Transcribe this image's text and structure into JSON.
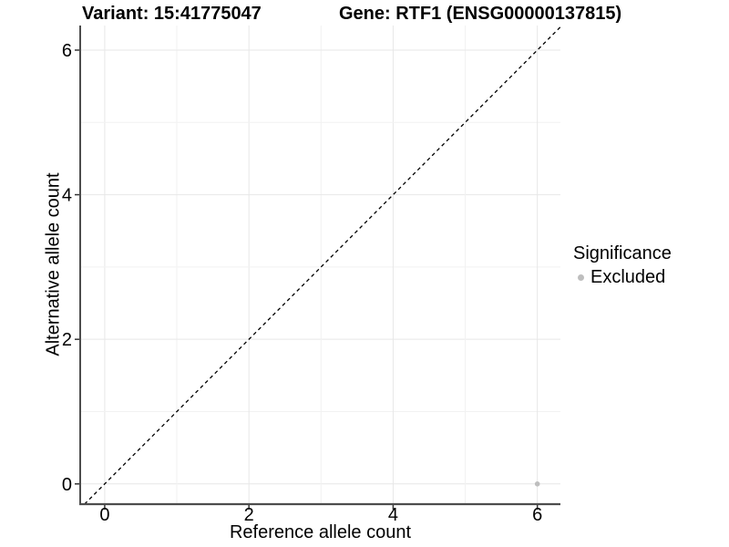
{
  "titles": {
    "variant": "Variant: 15:41775047",
    "gene": "Gene: RTF1 (ENSG00000137815)"
  },
  "axes": {
    "x_label": "Reference allele count",
    "y_label": "Alternative allele count"
  },
  "legend": {
    "title": "Significance",
    "items": [
      {
        "label": "Excluded",
        "color": "#bebebe"
      }
    ]
  },
  "chart_data": {
    "type": "scatter",
    "title_left": "Variant: 15:41775047",
    "title_right": "Gene: RTF1 (ENSG00000137815)",
    "xlabel": "Reference allele count",
    "ylabel": "Alternative allele count",
    "xlim": [
      -0.34,
      6.32
    ],
    "ylim": [
      -0.28,
      6.34
    ],
    "x_ticks": [
      0,
      2,
      4,
      6
    ],
    "y_ticks": [
      0,
      2,
      4,
      6
    ],
    "grid": "on",
    "gridline_values": [
      0,
      1,
      2,
      3,
      4,
      5,
      6
    ],
    "major_grid_color": "#e7e7e7",
    "minor_grid_color": "#f2f2f2",
    "axis_line_color": "#4d4d4d",
    "reference_line": {
      "type": "identity",
      "style": "dashed",
      "color": "#000000"
    },
    "legend_position": "right",
    "series": [
      {
        "name": "Excluded",
        "color": "#bebebe",
        "points": [
          {
            "x": 6,
            "y": 0
          }
        ]
      }
    ]
  }
}
